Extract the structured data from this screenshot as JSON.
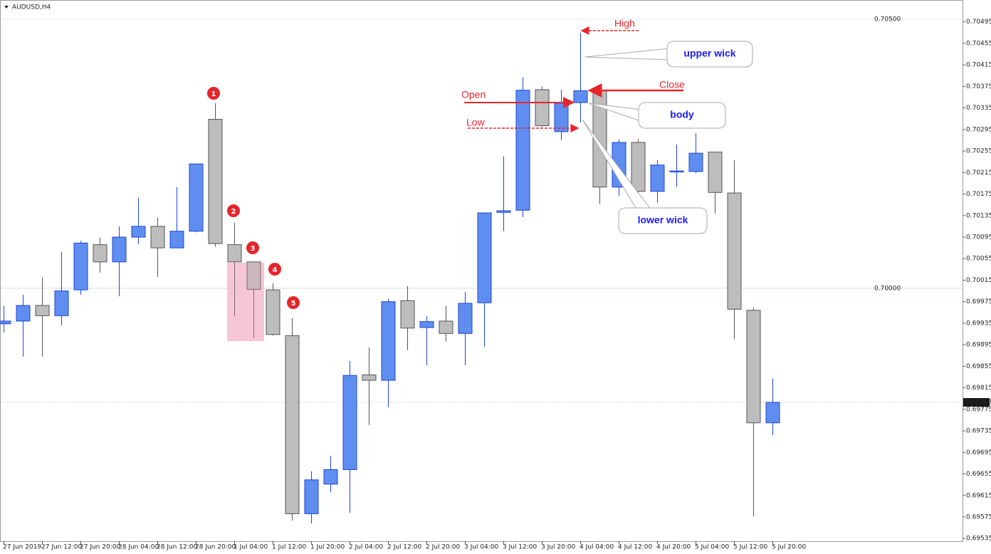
{
  "chart_data": {
    "type": "candlestick",
    "title": "AUDUSD,H4",
    "categories": [
      "27 Jun 2019",
      null,
      "27 Jun 12:00",
      null,
      "27 Jun 20:00",
      null,
      "28 Jun 04:00",
      null,
      "28 Jun 12:00",
      null,
      "28 Jun 20:00",
      null,
      "1 Jul 04:00",
      null,
      "1 Jul 12:00",
      null,
      "1 Jul 20:00",
      null,
      "2 Jul 04:00",
      null,
      "2 Jul 12:00",
      null,
      "2 Jul 20:00",
      null,
      "3 Jul 04:00",
      null,
      "3 Jul 12:00",
      null,
      "3 Jul 20:00",
      null,
      "4 Jul 04:00",
      null,
      "4 Jul 12:00",
      null,
      "4 Jul 20:00",
      null,
      "5 Jul 04:00",
      null,
      "5 Jul 12:00",
      null,
      "5 Jul 20:00"
    ],
    "open": [
      0.69934,
      0.69939,
      0.69968,
      0.69949,
      0.69997,
      0.70081,
      0.70049,
      0.70095,
      0.70115,
      0.70075,
      0.70106,
      0.70314,
      0.70081,
      0.70049,
      0.69997,
      0.69912,
      0.69581,
      0.69636,
      0.69663,
      0.69839,
      0.69829,
      0.69977,
      0.69927,
      0.69939,
      0.69916,
      0.69973,
      0.70141,
      0.70145,
      0.70369,
      0.70291,
      0.70345,
      0.70367,
      0.70188,
      0.70271,
      0.7018,
      0.70216,
      0.70217,
      0.70253,
      0.70177,
      0.69959,
      0.6975
    ],
    "high": [
      0.69967,
      0.69988,
      0.7002,
      0.70068,
      0.70088,
      0.70094,
      0.70115,
      0.70168,
      0.70131,
      0.70188,
      0.70231,
      0.70344,
      0.70122,
      0.70049,
      0.70009,
      0.69945,
      0.6966,
      0.69689,
      0.69865,
      0.6989,
      0.6998,
      0.70004,
      0.69948,
      0.69967,
      0.69993,
      0.70141,
      0.70245,
      0.70392,
      0.70375,
      0.70369,
      0.70475,
      0.70367,
      0.70277,
      0.70277,
      0.70238,
      0.70267,
      0.70288,
      0.70254,
      0.70238,
      0.69964,
      0.69832
    ],
    "low": [
      0.69918,
      0.69873,
      0.69873,
      0.69931,
      0.69988,
      0.70029,
      0.69985,
      0.70082,
      0.70021,
      0.70074,
      0.70104,
      0.70077,
      0.69949,
      0.69908,
      0.69912,
      0.69568,
      0.69563,
      0.69621,
      0.69583,
      0.69746,
      0.69779,
      0.69885,
      0.69857,
      0.69901,
      0.69857,
      0.69891,
      0.70106,
      0.70132,
      0.703,
      0.70275,
      0.70308,
      0.70157,
      0.70172,
      0.70178,
      0.70159,
      0.70188,
      0.70214,
      0.70139,
      0.69905,
      0.69576,
      0.69727
    ],
    "close": [
      0.69939,
      0.69968,
      0.69949,
      0.69995,
      0.70084,
      0.70049,
      0.70095,
      0.70115,
      0.70075,
      0.70106,
      0.70231,
      0.70083,
      0.70049,
      0.69998,
      0.69914,
      0.69581,
      0.69644,
      0.69663,
      0.69838,
      0.69829,
      0.69975,
      0.69926,
      0.69938,
      0.69916,
      0.69972,
      0.7014,
      0.70144,
      0.70368,
      0.70302,
      0.70344,
      0.70367,
      0.70188,
      0.70271,
      0.7018,
      0.70229,
      0.70218,
      0.70251,
      0.70178,
      0.69961,
      0.6975,
      0.69788
    ],
    "up_color": "#5f8ef0",
    "down_color": "#bdbdbd",
    "ylim": [
      0.6953,
      0.70533
    ],
    "yticks": [
      0.70495,
      0.70455,
      0.70415,
      0.70375,
      0.70335,
      0.70295,
      0.70255,
      0.70215,
      0.70175,
      0.70135,
      0.70095,
      0.70055,
      0.70015,
      0.69975,
      0.69935,
      0.69895,
      0.69855,
      0.69815,
      0.69775,
      0.69735,
      0.69695,
      0.69655,
      0.69615,
      0.69575,
      0.69535
    ],
    "levels": [
      {
        "value": 0.705,
        "label": "0.70500"
      },
      {
        "value": 0.7,
        "label": "0.70000"
      }
    ],
    "current_price": {
      "value": 0.69788,
      "label": "0.69788"
    },
    "markers": [
      "1",
      "2",
      "3",
      "4",
      "5"
    ],
    "labels": [
      "High",
      "Open",
      "Close",
      "Low"
    ],
    "callouts": [
      "upper wick",
      "body",
      "lower wick"
    ]
  }
}
